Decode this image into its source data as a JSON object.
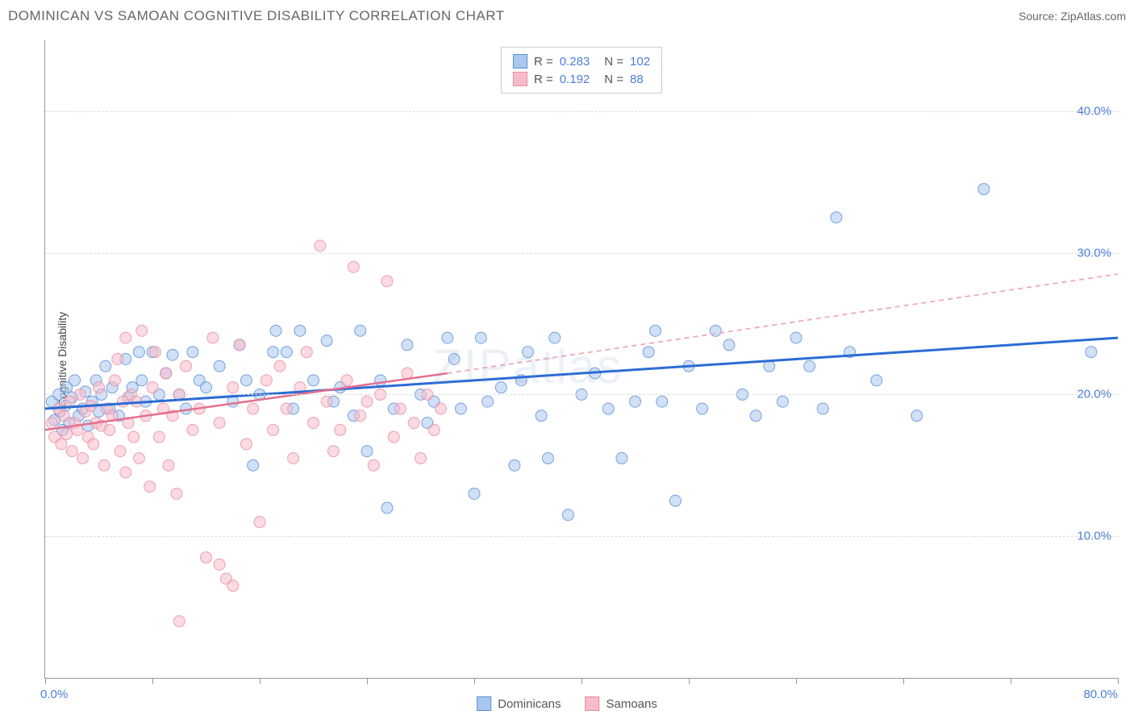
{
  "title": "DOMINICAN VS SAMOAN COGNITIVE DISABILITY CORRELATION CHART",
  "source": "Source: ZipAtlas.com",
  "y_axis_label": "Cognitive Disability",
  "watermark": "ZIPatlas",
  "chart": {
    "type": "scatter",
    "xlim": [
      0,
      80
    ],
    "ylim": [
      0,
      45
    ],
    "y_ticks": [
      10,
      20,
      30,
      40
    ],
    "y_tick_labels": [
      "10.0%",
      "20.0%",
      "30.0%",
      "40.0%"
    ],
    "x_ticks": [
      0,
      8,
      16,
      24,
      32,
      40,
      48,
      56,
      64,
      72,
      80
    ],
    "x_start_label": "0.0%",
    "x_end_label": "80.0%",
    "background_color": "#ffffff",
    "grid_color": "#dddddd",
    "axis_color": "#999999",
    "tick_label_color": "#4a7fd8",
    "marker_radius": 7,
    "marker_opacity": 0.55,
    "marker_stroke_opacity": 0.8
  },
  "series": [
    {
      "name": "Dominicans",
      "color_fill": "#a9c7ef",
      "color_stroke": "#5b8fd6",
      "r_value": "0.283",
      "n_value": "102",
      "trend": {
        "x1": 0,
        "y1": 19.0,
        "x2": 80,
        "y2": 24.0,
        "color": "#2b6cd4",
        "width": 3,
        "dashed": false,
        "extrapolate": false
      },
      "points": [
        [
          0.5,
          19.5
        ],
        [
          0.7,
          18.2
        ],
        [
          1.0,
          20.0
        ],
        [
          1.1,
          18.8
        ],
        [
          1.3,
          17.5
        ],
        [
          1.5,
          19.2
        ],
        [
          1.6,
          20.5
        ],
        [
          1.8,
          18.0
        ],
        [
          2.0,
          19.8
        ],
        [
          2.2,
          21.0
        ],
        [
          2.5,
          18.5
        ],
        [
          2.8,
          19.0
        ],
        [
          3.0,
          20.2
        ],
        [
          3.2,
          17.8
        ],
        [
          3.5,
          19.5
        ],
        [
          3.8,
          21.0
        ],
        [
          4.0,
          18.8
        ],
        [
          4.2,
          20.0
        ],
        [
          4.5,
          22.0
        ],
        [
          4.8,
          19.0
        ],
        [
          5.0,
          20.5
        ],
        [
          5.5,
          18.5
        ],
        [
          6.0,
          22.5
        ],
        [
          6.2,
          19.8
        ],
        [
          6.5,
          20.5
        ],
        [
          7.0,
          23.0
        ],
        [
          7.2,
          21.0
        ],
        [
          7.5,
          19.5
        ],
        [
          8.0,
          23.0
        ],
        [
          8.5,
          20.0
        ],
        [
          9.0,
          21.5
        ],
        [
          9.5,
          22.8
        ],
        [
          10.0,
          20.0
        ],
        [
          10.5,
          19.0
        ],
        [
          11.0,
          23.0
        ],
        [
          11.5,
          21.0
        ],
        [
          12.0,
          20.5
        ],
        [
          13.0,
          22.0
        ],
        [
          14.0,
          19.5
        ],
        [
          14.5,
          23.5
        ],
        [
          15.0,
          21.0
        ],
        [
          15.5,
          15.0
        ],
        [
          16.0,
          20.0
        ],
        [
          17.0,
          23.0
        ],
        [
          17.2,
          24.5
        ],
        [
          18.0,
          23.0
        ],
        [
          18.5,
          19.0
        ],
        [
          19.0,
          24.5
        ],
        [
          20.0,
          21.0
        ],
        [
          21.0,
          23.8
        ],
        [
          21.5,
          19.5
        ],
        [
          22.0,
          20.5
        ],
        [
          23.0,
          18.5
        ],
        [
          23.5,
          24.5
        ],
        [
          24.0,
          16.0
        ],
        [
          25.0,
          21.0
        ],
        [
          25.5,
          12.0
        ],
        [
          26.0,
          19.0
        ],
        [
          27.0,
          23.5
        ],
        [
          28.0,
          20.0
        ],
        [
          28.5,
          18.0
        ],
        [
          29.0,
          19.5
        ],
        [
          30.0,
          24.0
        ],
        [
          30.5,
          22.5
        ],
        [
          31.0,
          19.0
        ],
        [
          32.0,
          13.0
        ],
        [
          32.5,
          24.0
        ],
        [
          33.0,
          19.5
        ],
        [
          34.0,
          20.5
        ],
        [
          35.0,
          15.0
        ],
        [
          35.5,
          21.0
        ],
        [
          36.0,
          23.0
        ],
        [
          37.0,
          18.5
        ],
        [
          37.5,
          15.5
        ],
        [
          38.0,
          24.0
        ],
        [
          39.0,
          11.5
        ],
        [
          40.0,
          20.0
        ],
        [
          41.0,
          21.5
        ],
        [
          42.0,
          19.0
        ],
        [
          43.0,
          15.5
        ],
        [
          44.0,
          19.5
        ],
        [
          45.0,
          23.0
        ],
        [
          45.5,
          24.5
        ],
        [
          46.0,
          19.5
        ],
        [
          47.0,
          12.5
        ],
        [
          48.0,
          22.0
        ],
        [
          49.0,
          19.0
        ],
        [
          50.0,
          24.5
        ],
        [
          51.0,
          23.5
        ],
        [
          52.0,
          20.0
        ],
        [
          53.0,
          18.5
        ],
        [
          54.0,
          22.0
        ],
        [
          55.0,
          19.5
        ],
        [
          56.0,
          24.0
        ],
        [
          57.0,
          22.0
        ],
        [
          58.0,
          19.0
        ],
        [
          59.0,
          32.5
        ],
        [
          60.0,
          23.0
        ],
        [
          62.0,
          21.0
        ],
        [
          65.0,
          18.5
        ],
        [
          70.0,
          34.5
        ],
        [
          78.0,
          23.0
        ]
      ]
    },
    {
      "name": "Samoans",
      "color_fill": "#f7bcca",
      "color_stroke": "#e98ca3",
      "r_value": "0.192",
      "n_value": "88",
      "trend": {
        "x1": 0,
        "y1": 17.5,
        "x2": 30,
        "y2": 21.5,
        "color": "#e56f8f",
        "width": 2.5,
        "dashed": false,
        "extrapolate": true,
        "ex2": 80,
        "ey2": 28.5,
        "ex_color": "#f0a5b8"
      },
      "points": [
        [
          0.5,
          18.0
        ],
        [
          0.7,
          17.0
        ],
        [
          1.0,
          19.0
        ],
        [
          1.2,
          16.5
        ],
        [
          1.4,
          18.5
        ],
        [
          1.6,
          17.2
        ],
        [
          1.8,
          19.5
        ],
        [
          2.0,
          16.0
        ],
        [
          2.2,
          18.0
        ],
        [
          2.4,
          17.5
        ],
        [
          2.6,
          20.0
        ],
        [
          2.8,
          15.5
        ],
        [
          3.0,
          18.8
        ],
        [
          3.2,
          17.0
        ],
        [
          3.4,
          19.2
        ],
        [
          3.6,
          16.5
        ],
        [
          3.8,
          18.0
        ],
        [
          4.0,
          20.5
        ],
        [
          4.2,
          17.8
        ],
        [
          4.4,
          15.0
        ],
        [
          4.6,
          19.0
        ],
        [
          4.8,
          17.5
        ],
        [
          5.0,
          18.5
        ],
        [
          5.2,
          21.0
        ],
        [
          5.4,
          22.5
        ],
        [
          5.6,
          16.0
        ],
        [
          5.8,
          19.5
        ],
        [
          6.0,
          14.5
        ],
        [
          6.2,
          18.0
        ],
        [
          6.4,
          20.0
        ],
        [
          6.6,
          17.0
        ],
        [
          6.8,
          19.5
        ],
        [
          7.0,
          15.5
        ],
        [
          7.2,
          24.5
        ],
        [
          7.5,
          18.5
        ],
        [
          7.8,
          13.5
        ],
        [
          8.0,
          20.5
        ],
        [
          8.2,
          23.0
        ],
        [
          8.5,
          17.0
        ],
        [
          8.8,
          19.0
        ],
        [
          9.0,
          21.5
        ],
        [
          9.2,
          15.0
        ],
        [
          9.5,
          18.5
        ],
        [
          9.8,
          13.0
        ],
        [
          10.0,
          20.0
        ],
        [
          10.5,
          22.0
        ],
        [
          11.0,
          17.5
        ],
        [
          11.5,
          19.0
        ],
        [
          12.0,
          8.5
        ],
        [
          12.5,
          24.0
        ],
        [
          13.0,
          18.0
        ],
        [
          13.5,
          7.0
        ],
        [
          14.0,
          20.5
        ],
        [
          14.5,
          23.5
        ],
        [
          15.0,
          16.5
        ],
        [
          15.5,
          19.0
        ],
        [
          16.0,
          11.0
        ],
        [
          16.5,
          21.0
        ],
        [
          17.0,
          17.5
        ],
        [
          17.5,
          22.0
        ],
        [
          18.0,
          19.0
        ],
        [
          18.5,
          15.5
        ],
        [
          19.0,
          20.5
        ],
        [
          19.5,
          23.0
        ],
        [
          20.0,
          18.0
        ],
        [
          20.5,
          30.5
        ],
        [
          21.0,
          19.5
        ],
        [
          21.5,
          16.0
        ],
        [
          22.0,
          17.5
        ],
        [
          22.5,
          21.0
        ],
        [
          23.0,
          29.0
        ],
        [
          23.5,
          18.5
        ],
        [
          24.0,
          19.5
        ],
        [
          24.5,
          15.0
        ],
        [
          25.0,
          20.0
        ],
        [
          25.5,
          28.0
        ],
        [
          26.0,
          17.0
        ],
        [
          26.5,
          19.0
        ],
        [
          27.0,
          21.5
        ],
        [
          27.5,
          18.0
        ],
        [
          28.0,
          15.5
        ],
        [
          28.5,
          20.0
        ],
        [
          29.0,
          17.5
        ],
        [
          29.5,
          19.0
        ],
        [
          10.0,
          4.0
        ],
        [
          13.0,
          8.0
        ],
        [
          14.0,
          6.5
        ],
        [
          6.0,
          24.0
        ]
      ]
    }
  ],
  "legend_labels": {
    "r_prefix": "R =",
    "n_prefix": "N ="
  }
}
